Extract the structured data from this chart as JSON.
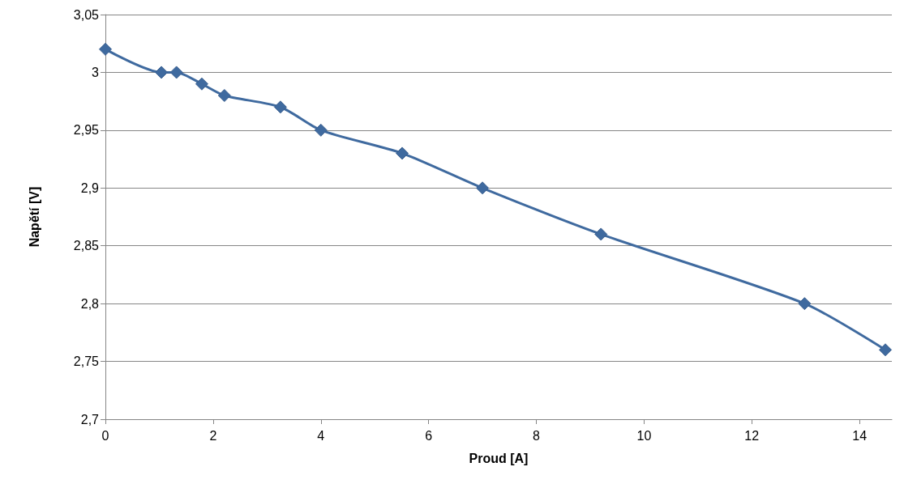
{
  "chart_data": {
    "type": "line",
    "xlabel": "Proud [A]",
    "ylabel": "Napětí [V]",
    "x": [
      0,
      1.04,
      1.32,
      1.79,
      2.21,
      3.25,
      4,
      5.51,
      7,
      9.2,
      12.98,
      14.48
    ],
    "series": [
      {
        "color": "#3f6a9f",
        "values": [
          3.02,
          3,
          3,
          2.99,
          2.98,
          2.97,
          2.95,
          2.93,
          2.9,
          2.86,
          2.8,
          2.76
        ]
      }
    ],
    "xlim": [
      0,
      14.6
    ],
    "xticks": [
      0,
      2,
      4,
      6,
      8,
      10,
      12,
      14
    ],
    "ylim": [
      2.7,
      3.05
    ],
    "yticks": [
      {
        "value": 2.7,
        "label": "2,7"
      },
      {
        "value": 2.75,
        "label": "2,75"
      },
      {
        "value": 2.8,
        "label": "2,8"
      },
      {
        "value": 2.85,
        "label": "2,85"
      },
      {
        "value": 2.9,
        "label": "2,9"
      },
      {
        "value": 2.95,
        "label": "2,95"
      },
      {
        "value": 3,
        "label": "3"
      },
      {
        "value": 3.05,
        "label": "3,05"
      }
    ],
    "grid": "y",
    "marker": "diamond"
  }
}
